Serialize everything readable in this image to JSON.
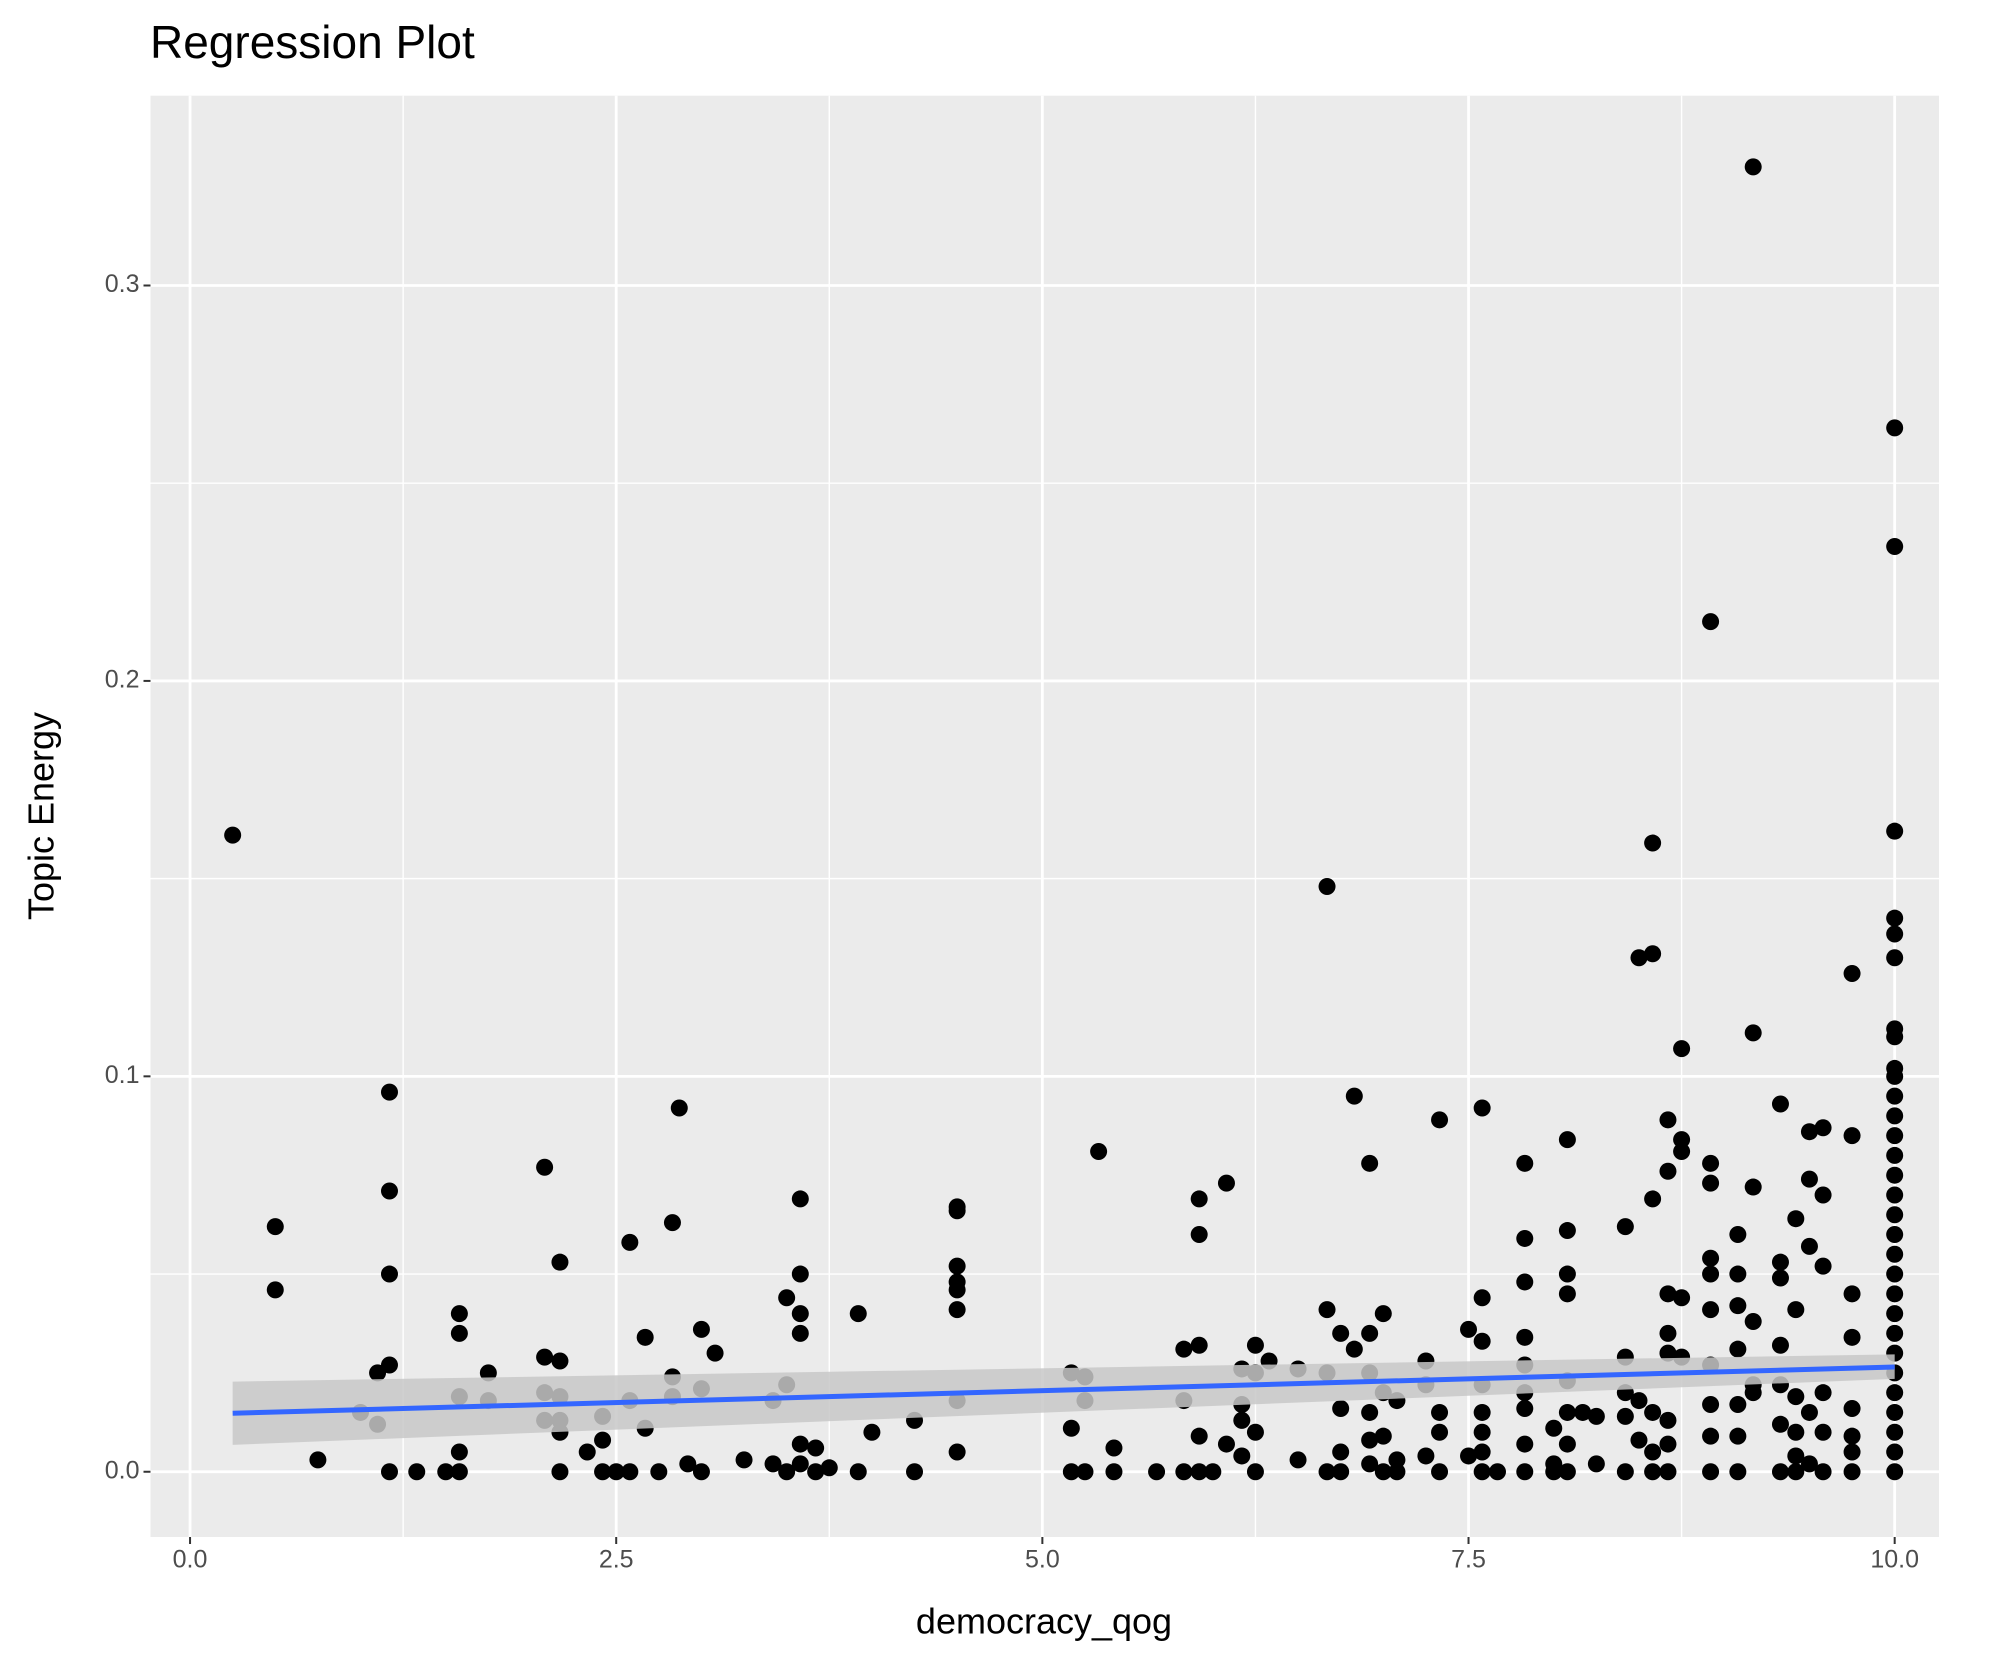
{
  "chart_data": {
    "type": "scatter",
    "title": "Regression Plot",
    "x_label": "democracy_qog",
    "y_label": "Topic Energy",
    "xlim": [
      -0.232,
      10.26
    ],
    "ylim": [
      -0.0165,
      0.348
    ],
    "xticks": [
      {
        "value": 0,
        "label": "0.0"
      },
      2.5,
      {
        "value": 5,
        "label": "5.0"
      },
      7.5,
      {
        "value": 10,
        "label": "10.0"
      }
    ],
    "yticks": [
      {
        "value": 0,
        "label": "0.0"
      },
      0.1,
      0.2,
      0.3
    ],
    "x_minor_grid": [
      1.25,
      3.75,
      6.25,
      8.75
    ],
    "y_minor_grid": [
      0.05,
      0.15,
      0.25
    ],
    "grid": true,
    "color": "#000000",
    "x": [
      0.25,
      0.5,
      0.5,
      0.75,
      1.0,
      1.1,
      1.1,
      1.17,
      1.17,
      1.17,
      1.17,
      1.17,
      1.33,
      1.5,
      1.58,
      1.58,
      1.58,
      1.58,
      1.58,
      1.75,
      1.75,
      2.08,
      2.08,
      2.08,
      2.08,
      2.17,
      2.17,
      2.17,
      2.17,
      2.17,
      2.17,
      2.33,
      2.42,
      2.42,
      2.42,
      2.5,
      2.58,
      2.58,
      2.58,
      2.67,
      2.67,
      2.75,
      2.83,
      2.83,
      2.83,
      2.87,
      2.92,
      3.0,
      3.0,
      3.0,
      3.08,
      3.25,
      3.42,
      3.42,
      3.5,
      3.5,
      3.5,
      3.58,
      3.58,
      3.58,
      3.58,
      3.58,
      3.58,
      3.67,
      3.67,
      3.75,
      3.92,
      3.92,
      4.0,
      4.25,
      4.25,
      4.5,
      4.5,
      4.5,
      4.5,
      4.5,
      4.5,
      4.5,
      4.5,
      5.17,
      5.17,
      5.17,
      5.25,
      5.25,
      5.25,
      5.33,
      5.42,
      5.42,
      5.67,
      5.83,
      5.83,
      5.83,
      5.92,
      5.92,
      5.92,
      5.92,
      5.92,
      6.08,
      6.08,
      6.0,
      6.17,
      6.17,
      6.17,
      6.17,
      6.25,
      6.25,
      6.25,
      6.25,
      6.33,
      6.5,
      6.5,
      6.67,
      6.67,
      6.67,
      6.67,
      6.75,
      6.75,
      6.75,
      6.75,
      6.83,
      6.83,
      6.92,
      6.92,
      6.92,
      6.92,
      6.92,
      6.92,
      7.0,
      7.0,
      7.0,
      7.0,
      7.08,
      7.08,
      7.08,
      7.25,
      7.25,
      7.25,
      7.33,
      7.33,
      7.33,
      7.33,
      7.5,
      7.5,
      7.58,
      7.58,
      7.58,
      7.58,
      7.58,
      7.58,
      7.58,
      7.58,
      7.67,
      7.83,
      7.83,
      7.83,
      7.83,
      7.83,
      7.83,
      7.83,
      7.83,
      7.83,
      8.0,
      8.0,
      8.0,
      8.08,
      8.08,
      8.08,
      8.08,
      8.08,
      8.08,
      8.08,
      8.08,
      8.17,
      8.25,
      8.25,
      8.42,
      8.42,
      8.42,
      8.42,
      8.42,
      8.5,
      8.5,
      8.5,
      8.58,
      8.58,
      8.58,
      8.58,
      8.58,
      8.58,
      8.67,
      8.67,
      8.67,
      8.67,
      8.67,
      8.67,
      8.67,
      8.67,
      8.75,
      8.75,
      8.75,
      8.75,
      8.75,
      8.92,
      8.92,
      8.92,
      8.92,
      8.92,
      8.92,
      8.92,
      8.92,
      8.92,
      8.92,
      9.08,
      9.08,
      9.08,
      9.08,
      9.08,
      9.08,
      9.08,
      9.17,
      9.17,
      9.17,
      9.17,
      9.17,
      9.17,
      9.33,
      9.33,
      9.33,
      9.33,
      9.33,
      9.33,
      9.33,
      9.42,
      9.42,
      9.42,
      9.42,
      9.42,
      9.42,
      9.5,
      9.5,
      9.5,
      9.5,
      9.5,
      9.58,
      9.58,
      9.58,
      9.58,
      9.58,
      9.58,
      9.75,
      9.75,
      9.75,
      9.75,
      9.75,
      9.75,
      9.75,
      9.75,
      10,
      10,
      10,
      10,
      10,
      10,
      10,
      10,
      10,
      10,
      10,
      10,
      10,
      10,
      10,
      10,
      10,
      10,
      10,
      10,
      10,
      10,
      10,
      10,
      10,
      10,
      10,
      10,
      10,
      10
    ],
    "values": [
      0.161,
      0.062,
      0.046,
      0.003,
      0.015,
      0.025,
      0.012,
      0.096,
      0.071,
      0.05,
      0.027,
      0,
      0,
      0,
      0,
      0.005,
      0.019,
      0.035,
      0.04,
      0.025,
      0.018,
      0.077,
      0.029,
      0.02,
      0.013,
      0.053,
      0.028,
      0.019,
      0.013,
      0.01,
      0,
      0.005,
      0.014,
      0.008,
      0,
      0,
      0.058,
      0.018,
      0,
      0.034,
      0.011,
      0,
      0.063,
      0.024,
      0.019,
      0.092,
      0.002,
      0.036,
      0.021,
      0,
      0.03,
      0.003,
      0.002,
      0.018,
      0.044,
      0.022,
      0,
      0.069,
      0.05,
      0.04,
      0.035,
      0.007,
      0.002,
      0.006,
      0,
      0.001,
      0.04,
      0,
      0.01,
      0.013,
      0,
      0.067,
      0.066,
      0.052,
      0.048,
      0.046,
      0.041,
      0.018,
      0.005,
      0.025,
      0.011,
      0,
      0.024,
      0.018,
      0,
      0.081,
      0.006,
      0,
      0,
      0.031,
      0.018,
      0,
      0.069,
      0.06,
      0.032,
      0.009,
      0,
      0.073,
      0.007,
      0,
      0.026,
      0.017,
      0.013,
      0.004,
      0.032,
      0.025,
      0.01,
      0,
      0.028,
      0.026,
      0.003,
      0.148,
      0.041,
      0.025,
      0,
      0.035,
      0.016,
      0.005,
      0,
      0.095,
      0.031,
      0.078,
      0.035,
      0.025,
      0.015,
      0.008,
      0.002,
      0.04,
      0.02,
      0.009,
      0,
      0.018,
      0.003,
      0,
      0.028,
      0.022,
      0.004,
      0.089,
      0.015,
      0.01,
      0,
      0.036,
      0.004,
      0.092,
      0.044,
      0.033,
      0.022,
      0.015,
      0.01,
      0.005,
      0,
      0,
      0.078,
      0.059,
      0.048,
      0.034,
      0.027,
      0.02,
      0.016,
      0.007,
      0,
      0.011,
      0.002,
      0,
      0.084,
      0.061,
      0.05,
      0.045,
      0.023,
      0.015,
      0.007,
      0,
      0.015,
      0.014,
      0.002,
      0.062,
      0.029,
      0.02,
      0.014,
      0,
      0.13,
      0.018,
      0.008,
      0.159,
      0.131,
      0.069,
      0.015,
      0.005,
      0,
      0.089,
      0.076,
      0.045,
      0.035,
      0.03,
      0.013,
      0.007,
      0,
      0.107,
      0.084,
      0.081,
      0.044,
      0.029,
      0.078,
      0.073,
      0.054,
      0.05,
      0.041,
      0.027,
      0.017,
      0.009,
      0,
      0.215,
      0.06,
      0.05,
      0.042,
      0.031,
      0.017,
      0.009,
      0,
      0.33,
      0.111,
      0.072,
      0.038,
      0.022,
      0.02,
      0.093,
      0.053,
      0.049,
      0.032,
      0.022,
      0.012,
      0,
      0.064,
      0.041,
      0.019,
      0.01,
      0.004,
      0,
      0.086,
      0.074,
      0.057,
      0.015,
      0.002,
      0.087,
      0.07,
      0.052,
      0.02,
      0.01,
      0,
      0.126,
      0.085,
      0.045,
      0.034,
      0.016,
      0.009,
      0.005,
      0,
      0.264,
      0.234,
      0.162,
      0.14,
      0.136,
      0.13,
      0.112,
      0.11,
      0.102,
      0.1,
      0.095,
      0.09,
      0.085,
      0.08,
      0.075,
      0.07,
      0.065,
      0.06,
      0.055,
      0.05,
      0.045,
      0.04,
      0.035,
      0.03,
      0.025,
      0.02,
      0.015,
      0.01,
      0.005,
      0
    ],
    "fit": {
      "x": [
        0.25,
        10
      ],
      "values": [
        0.0148,
        0.0265
      ],
      "lower": [
        0.0068,
        0.0235
      ],
      "upper": [
        0.0228,
        0.0297
      ],
      "color": "#3366ff",
      "band_color": "#c8c8c8"
    }
  }
}
